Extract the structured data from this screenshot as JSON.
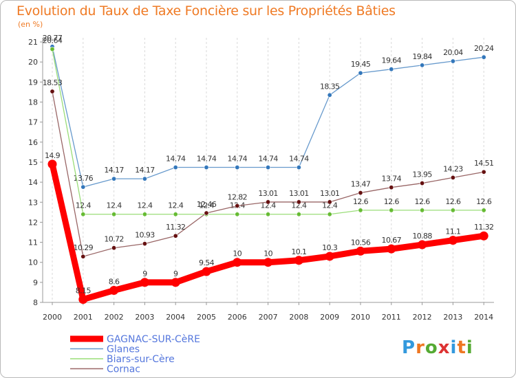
{
  "chart_data": {
    "type": "line",
    "title": "Evolution du Taux de Taxe Foncière sur les Propriétés Bâties",
    "ylabel": "(en %)",
    "ylim": [
      8,
      21
    ],
    "yticks": [
      8,
      9,
      10,
      11,
      12,
      13,
      14,
      15,
      16,
      17,
      18,
      19,
      20,
      21
    ],
    "x": [
      "2000",
      "2001",
      "2002",
      "2003",
      "2004",
      "2005",
      "2006",
      "2007",
      "2008",
      "2009",
      "2010",
      "2011",
      "2012",
      "2013",
      "2014"
    ],
    "series": [
      {
        "name": "GAGNAC-SUR-CèRE",
        "color": "#ff0000",
        "emphasis": true,
        "values": [
          14.9,
          8.15,
          8.6,
          9,
          9,
          9.54,
          10,
          10,
          10.1,
          10.3,
          10.56,
          10.67,
          10.88,
          11.1,
          11.32
        ],
        "labels": [
          "14.9",
          "8.15",
          "8.6",
          "9",
          "9",
          "9.54",
          "10",
          "10",
          "10.1",
          "10.3",
          "10.56",
          "10.67",
          "10.88",
          "11.1",
          "11.32"
        ]
      },
      {
        "name": "Glanes",
        "color": "#6699cc",
        "dot": "#3377bb",
        "values": [
          20.77,
          13.76,
          14.17,
          14.17,
          14.74,
          14.74,
          14.74,
          14.74,
          14.74,
          18.35,
          19.45,
          19.64,
          19.84,
          20.04,
          20.24
        ],
        "labels": [
          "20.77",
          "13.76",
          "14.17",
          "14.17",
          "14.74",
          "14.74",
          "14.74",
          "14.74",
          "14.74",
          "18.35",
          "19.45",
          "19.64",
          "19.84",
          "20.04",
          "20.24"
        ]
      },
      {
        "name": "Biars-sur-Cère",
        "color": "#99dd77",
        "dot": "#66bb33",
        "values": [
          20.64,
          12.4,
          12.4,
          12.4,
          12.4,
          12.4,
          12.4,
          12.4,
          12.4,
          12.4,
          12.6,
          12.6,
          12.6,
          12.6,
          12.6
        ],
        "labels": [
          "20.64",
          "12.4",
          "12.4",
          "12.4",
          "12.4",
          "12.4",
          "12.4",
          "12.4",
          "12.4",
          "12.4",
          "12.6",
          "12.6",
          "12.6",
          "12.6",
          "12.6"
        ]
      },
      {
        "name": "Cornac",
        "color": "#996666",
        "dot": "#661111",
        "values": [
          18.53,
          10.29,
          10.72,
          10.93,
          11.32,
          12.46,
          12.82,
          13.01,
          13.01,
          13.01,
          13.47,
          13.74,
          13.95,
          14.23,
          14.51
        ],
        "labels": [
          "18.53",
          "10.29",
          "10.72",
          "10.93",
          "11.32",
          "12.46",
          "12.82",
          "13.01",
          "13.01",
          "13.01",
          "13.47",
          "13.74",
          "13.95",
          "14.23",
          "14.51"
        ]
      }
    ]
  },
  "logo": {
    "text": "Proxiti"
  }
}
